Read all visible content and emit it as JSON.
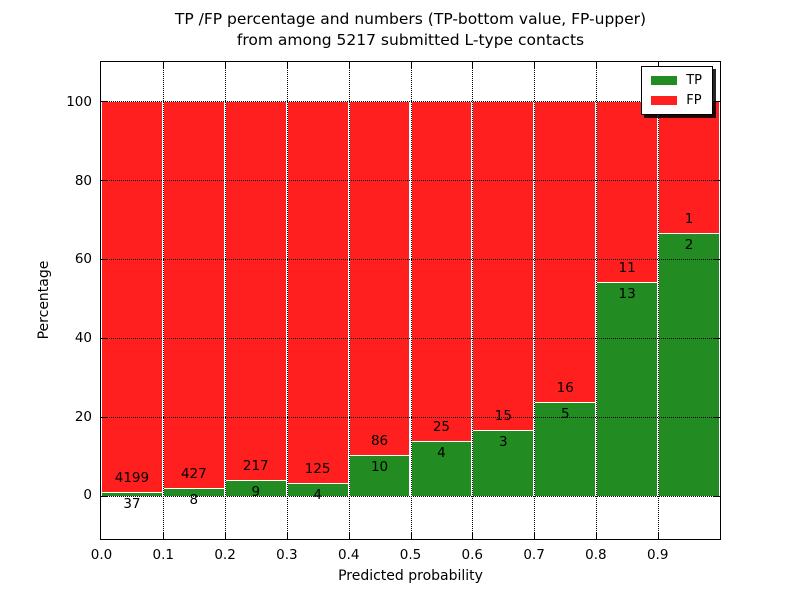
{
  "title": {
    "line1": "TP /FP percentage and numbers (TP-bottom value, FP-upper)",
    "line2": "from among 5217 submitted L-type contacts"
  },
  "chart_data": {
    "type": "bar",
    "stacked": true,
    "title": "TP /FP percentage and numbers (TP-bottom value, FP-upper) from among 5217 submitted L-type contacts",
    "xlabel": "Predicted probability",
    "ylabel": "Percentage",
    "total_submitted": 5217,
    "bin_width": 0.1,
    "bin_starts": [
      0.0,
      0.1,
      0.2,
      0.3,
      0.4,
      0.5,
      0.6,
      0.7,
      0.8,
      0.9
    ],
    "xticks": [
      "0.0",
      "0.1",
      "0.2",
      "0.3",
      "0.4",
      "0.5",
      "0.6",
      "0.7",
      "0.8",
      "0.9"
    ],
    "yticks": [
      0,
      20,
      40,
      60,
      80,
      100
    ],
    "ylim": [
      -11,
      110
    ],
    "xlim": [
      0.0,
      1.0
    ],
    "grid": true,
    "grid_style": "dotted",
    "legend_position": "upper right",
    "series": [
      {
        "name": "TP",
        "color": "#228b22",
        "counts": [
          37,
          8,
          9,
          4,
          10,
          4,
          3,
          5,
          13,
          2
        ],
        "percent": [
          0.87,
          1.84,
          3.98,
          3.1,
          10.42,
          13.79,
          16.67,
          23.81,
          54.17,
          66.67
        ]
      },
      {
        "name": "FP",
        "color": "#ff1f1f",
        "counts": [
          4199,
          427,
          217,
          125,
          86,
          25,
          15,
          16,
          11,
          1
        ],
        "percent": [
          99.13,
          98.16,
          96.02,
          96.9,
          89.58,
          86.21,
          83.33,
          76.19,
          45.83,
          33.33
        ]
      }
    ]
  },
  "legend": {
    "items": [
      {
        "label": "TP",
        "color": "#228b22"
      },
      {
        "label": "FP",
        "color": "#ff1f1f"
      }
    ]
  }
}
